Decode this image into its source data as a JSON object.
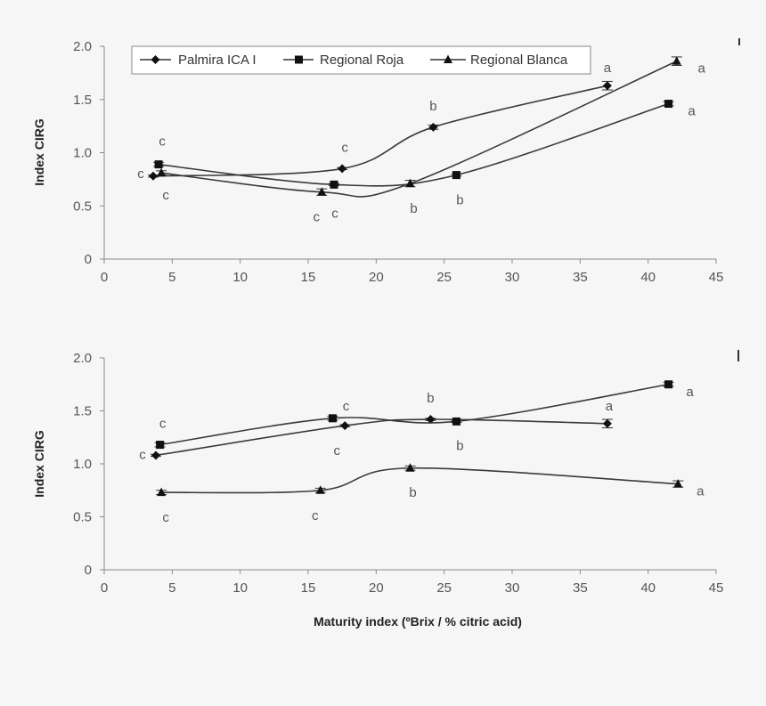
{
  "chart_data": [
    {
      "type": "line",
      "panel": "top",
      "title": "",
      "xlabel": "",
      "ylabel": "Index CIRG",
      "xlim": [
        0,
        45
      ],
      "ylim": [
        0,
        2.0
      ],
      "x_ticks": [
        0,
        5,
        10,
        15,
        20,
        25,
        30,
        35,
        40,
        45
      ],
      "x_tick_labels": [
        "0",
        "5",
        "10",
        "15",
        "20",
        "25",
        "30",
        "35",
        "40",
        "45"
      ],
      "y_ticks": [
        0,
        0.5,
        1.0,
        1.5,
        2.0
      ],
      "y_tick_labels": [
        "0",
        "0.5",
        "1.0",
        "1.5",
        "2.0"
      ],
      "grid": false,
      "legend": {
        "placement": "top",
        "entries": [
          {
            "label": "Palmira ICA I",
            "marker": "diamond"
          },
          {
            "label": "Regional Roja",
            "marker": "square"
          },
          {
            "label": "Regional Blanca",
            "marker": "triangle"
          }
        ]
      },
      "series": [
        {
          "name": "Palmira ICA I",
          "marker": "diamond",
          "x": [
            3.6,
            17.5,
            24.2,
            37.0
          ],
          "y": [
            0.78,
            0.85,
            1.24,
            1.63
          ],
          "error": [
            0.01,
            0.01,
            0.02,
            0.04
          ],
          "significance": [
            "c",
            "c",
            "b",
            "a"
          ]
        },
        {
          "name": "Regional Roja",
          "marker": "square",
          "x": [
            4.0,
            16.9,
            25.9,
            41.5
          ],
          "y": [
            0.89,
            0.7,
            0.79,
            1.46
          ],
          "error": [
            0.02,
            0.01,
            0.01,
            0.02
          ],
          "significance": [
            "c",
            "c",
            "b",
            "a"
          ]
        },
        {
          "name": "Regional Blanca",
          "marker": "triangle",
          "x": [
            4.2,
            16.0,
            22.5,
            42.1
          ],
          "y": [
            0.81,
            0.63,
            0.71,
            1.86
          ],
          "error": [
            0.02,
            0.03,
            0.03,
            0.04
          ],
          "significance": [
            "c",
            "c",
            "b",
            "a"
          ]
        }
      ]
    },
    {
      "type": "line",
      "panel": "bottom",
      "title": "",
      "xlabel": "Maturity index (ºBrix / % citric acid)",
      "ylabel": "Index CIRG",
      "xlim": [
        0,
        45
      ],
      "ylim": [
        0,
        2.0
      ],
      "x_ticks": [
        0,
        5,
        10,
        15,
        20,
        25,
        30,
        35,
        40,
        45
      ],
      "x_tick_labels": [
        "0",
        "5",
        "10",
        "15",
        "20",
        "25",
        "30",
        "35",
        "40",
        "45"
      ],
      "y_ticks": [
        0,
        0.5,
        1.0,
        1.5,
        2.0
      ],
      "y_tick_labels": [
        "0",
        "0.5",
        "1.0",
        "1.5",
        "2.0"
      ],
      "grid": false,
      "series": [
        {
          "name": "Palmira ICA I",
          "marker": "diamond",
          "x": [
            3.8,
            17.7,
            24.0,
            37.0
          ],
          "y": [
            1.08,
            1.36,
            1.42,
            1.38
          ],
          "error": [
            0.01,
            0.01,
            0.01,
            0.04
          ],
          "significance": [
            "c",
            "c",
            "b",
            "a"
          ]
        },
        {
          "name": "Regional Roja",
          "marker": "square",
          "x": [
            4.1,
            16.8,
            25.9,
            41.5
          ],
          "y": [
            1.18,
            1.43,
            1.4,
            1.75
          ],
          "error": [
            0.02,
            0.02,
            0.01,
            0.02
          ],
          "significance": [
            "c",
            "c",
            "b",
            "a"
          ]
        },
        {
          "name": "Regional Blanca",
          "marker": "triangle",
          "x": [
            4.2,
            15.9,
            22.5,
            42.2
          ],
          "y": [
            0.73,
            0.75,
            0.96,
            0.81
          ],
          "error": [
            0.02,
            0.02,
            0.02,
            0.03
          ],
          "significance": [
            "c",
            "c",
            "b",
            "a"
          ]
        }
      ]
    }
  ]
}
